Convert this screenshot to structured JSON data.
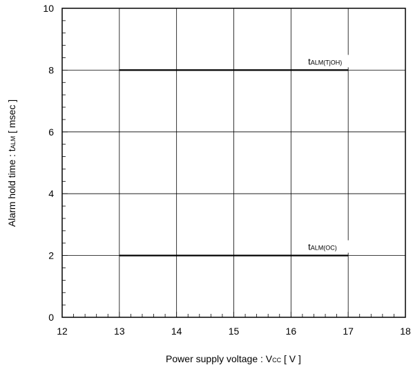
{
  "chart_data": {
    "type": "line",
    "title": "",
    "xlabel": {
      "main": "Power supply voltage  :  V",
      "sub": "CC",
      "tail": " [ V ]"
    },
    "ylabel": {
      "main": "Alarm hold time : t",
      "sub": "ALM",
      "tail": " [ msec ]"
    },
    "xlim": [
      12,
      18
    ],
    "ylim": [
      0,
      10
    ],
    "x_ticks": [
      12,
      13,
      14,
      15,
      16,
      17,
      18
    ],
    "y_ticks": [
      0,
      2,
      4,
      6,
      8,
      10
    ],
    "grid": true,
    "series": [
      {
        "name": "t",
        "name_sub": "ALM(TjOH)",
        "x": [
          13,
          17
        ],
        "y": [
          8,
          8
        ]
      },
      {
        "name": "t",
        "name_sub": "ALM(OC)",
        "x": [
          13,
          17
        ],
        "y": [
          2,
          2
        ]
      }
    ]
  }
}
